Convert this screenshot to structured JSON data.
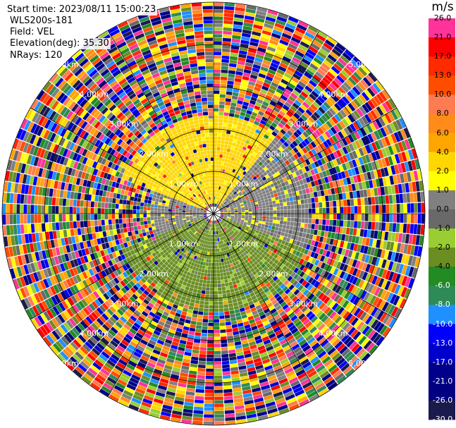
{
  "header": {
    "start_time": "Start time: 2023/08/11 15:00:23",
    "instrument": "WLS200s-181",
    "field": "Field: VEL",
    "elevation": "Elevation(deg): 35.30",
    "nrays": "NRays: 120"
  },
  "colorbar": {
    "unit": "m/s",
    "boundaries": [
      26.0,
      21.0,
      17.0,
      13.0,
      10.0,
      8.0,
      6.0,
      4.0,
      2.0,
      1.0,
      0.0,
      -1.0,
      -2.0,
      -4.0,
      -6.0,
      -8.0,
      -10.0,
      -13.0,
      -17.0,
      -21.0,
      -26.0,
      -30.0
    ],
    "tick_labels": [
      "26.0",
      "21.0",
      "17.0",
      "13.0",
      "10.0",
      "8.0",
      "6.0",
      "4.0",
      "2.0",
      "1.0",
      "0.0",
      "-1.0",
      "-2.0",
      "-4.0",
      "-6.0",
      "-8.0",
      "-10.0",
      "-13.0",
      "-17.0",
      "-21.0",
      "-26.0",
      "-30.0"
    ],
    "colors": [
      "#ff3399",
      "#ff0000",
      "#ff2a00",
      "#ff4d00",
      "#ff7b52",
      "#ff8c1a",
      "#ffa500",
      "#ffd700",
      "#ffff00",
      "#808080",
      "#696969",
      "#9acd32",
      "#6b8e23",
      "#228b22",
      "#2e8b57",
      "#1e90ff",
      "#0000ff",
      "#0000cd",
      "#00008b",
      "#000080",
      "#1a1a4d"
    ]
  },
  "chart_data": {
    "type": "ppi",
    "field": "VEL",
    "unit": "m/s",
    "nrays": 120,
    "range_rings_km": [
      1.0,
      2.0,
      3.0,
      4.0,
      5.0
    ],
    "ring_labels": [
      "1.00km",
      "2.00km",
      "3.00km",
      "4.00km",
      "5.00km"
    ],
    "max_range_km": 5.0,
    "spokes_deg": [
      0,
      30,
      60,
      90,
      120,
      150,
      180,
      210,
      240,
      270,
      300,
      330
    ],
    "regions": [
      {
        "description": "north sector near-range",
        "azimuth_deg": [
          290,
          40
        ],
        "range_km": [
          0.2,
          2.3
        ],
        "velocity_m_s": 2.5
      },
      {
        "description": "east-northeast sector near-range",
        "azimuth_deg": [
          40,
          110
        ],
        "range_km": [
          0.2,
          2.3
        ],
        "velocity_m_s": 0.5
      },
      {
        "description": "south-southeast sector near-range",
        "azimuth_deg": [
          110,
          250
        ],
        "range_km": [
          0.2,
          2.3
        ],
        "velocity_m_s": -2.5
      },
      {
        "description": "west sector near-range",
        "azimuth_deg": [
          250,
          290
        ],
        "range_km": [
          0.2,
          1.5
        ],
        "velocity_m_s": 0.5
      },
      {
        "description": "far range noise",
        "range_km": [
          2.3,
          5.0
        ],
        "velocity_m_s": "random"
      }
    ]
  }
}
